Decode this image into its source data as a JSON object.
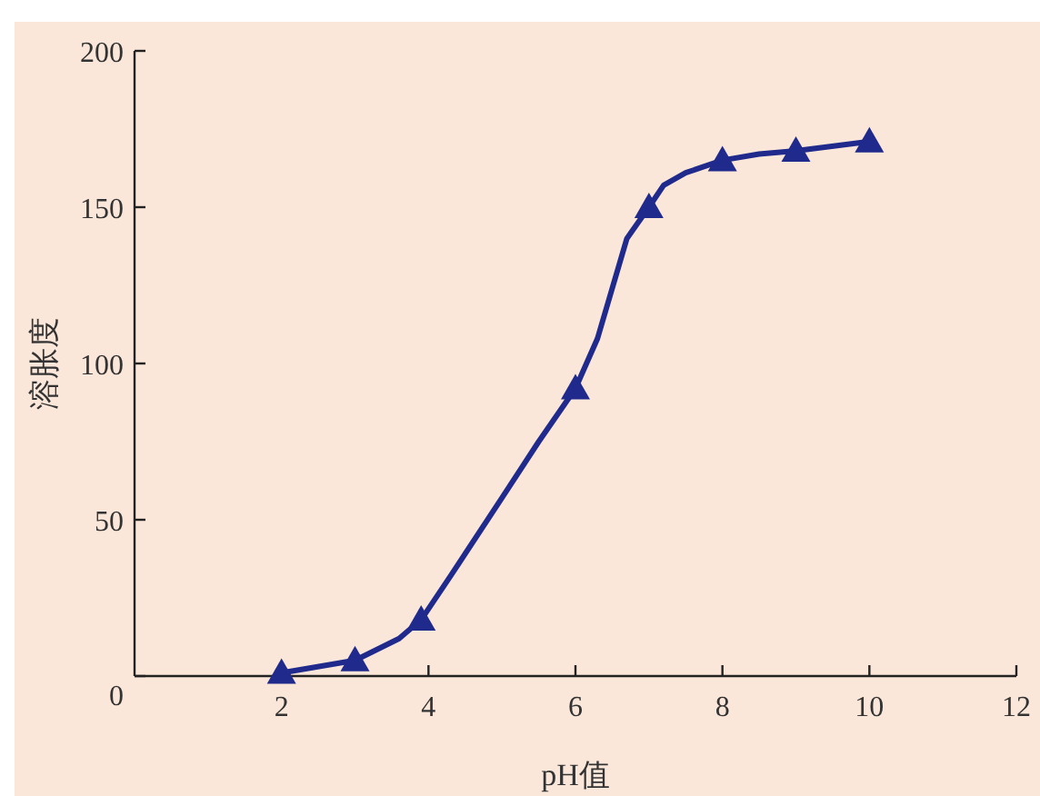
{
  "chart_data": {
    "type": "line",
    "xlabel": "pH值",
    "ylabel": "溶胀度",
    "xlim": [
      0,
      12
    ],
    "xticks": [
      2,
      4,
      6,
      8,
      10,
      12
    ],
    "ylim": [
      0,
      200
    ],
    "yticks": [
      0,
      50,
      100,
      150,
      200
    ],
    "grid": false,
    "series": [
      {
        "color": "#1f2a8c",
        "marker": "none",
        "line_style": "solid",
        "x": [
          2,
          3,
          3.6,
          3.9,
          4.3,
          5,
          5.5,
          6,
          6.3,
          6.7,
          7,
          7.2,
          7.5,
          8,
          8.5,
          9,
          10
        ],
        "values": [
          1,
          5,
          12,
          18,
          32,
          57,
          75,
          92,
          108,
          140,
          150,
          157,
          161,
          165,
          167,
          168,
          171
        ]
      },
      {
        "type": "scatter",
        "color": "#1f2a8c",
        "marker": "triangle",
        "x": [
          2,
          3,
          3.9,
          6,
          7,
          8,
          9,
          10
        ],
        "values": [
          1,
          5,
          18,
          92,
          150,
          165,
          168,
          171
        ]
      }
    ]
  }
}
